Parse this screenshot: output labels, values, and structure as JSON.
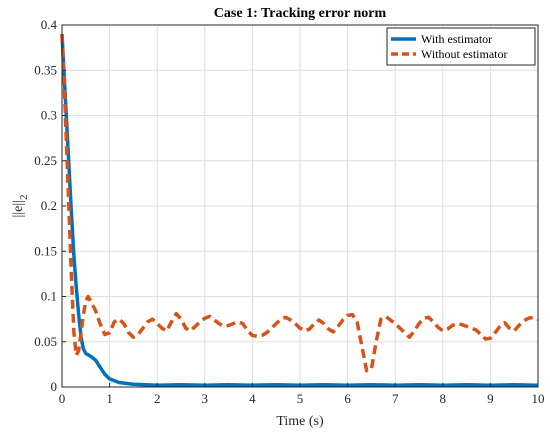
{
  "chart_data": {
    "type": "line",
    "title": "Case 1: Tracking error norm",
    "xlabel": "Time (s)",
    "ylabel": "||e||",
    "ylabel_sub": "2",
    "xlim": [
      0,
      10
    ],
    "ylim": [
      0,
      0.4
    ],
    "grid": true,
    "legend_position": "top-right",
    "x_ticks": [
      "0",
      "1",
      "2",
      "3",
      "4",
      "5",
      "6",
      "7",
      "8",
      "9",
      "10"
    ],
    "y_ticks": [
      "0",
      "0.05",
      "0.1",
      "0.15",
      "0.2",
      "0.25",
      "0.3",
      "0.35",
      "0.4"
    ],
    "series": [
      {
        "name": "With estimator",
        "color": "#0072BD",
        "style": "solid",
        "points": [
          [
            0.0,
            0.39
          ],
          [
            0.05,
            0.34
          ],
          [
            0.1,
            0.29
          ],
          [
            0.15,
            0.24
          ],
          [
            0.2,
            0.19
          ],
          [
            0.25,
            0.145
          ],
          [
            0.3,
            0.11
          ],
          [
            0.35,
            0.08
          ],
          [
            0.4,
            0.055
          ],
          [
            0.45,
            0.042
          ],
          [
            0.5,
            0.037
          ],
          [
            0.6,
            0.034
          ],
          [
            0.7,
            0.03
          ],
          [
            0.8,
            0.022
          ],
          [
            0.9,
            0.014
          ],
          [
            1.0,
            0.009
          ],
          [
            1.2,
            0.005
          ],
          [
            1.5,
            0.003
          ],
          [
            2.0,
            0.002
          ],
          [
            2.5,
            0.0025
          ],
          [
            3.0,
            0.002
          ],
          [
            3.5,
            0.0025
          ],
          [
            4.0,
            0.002
          ],
          [
            4.5,
            0.0025
          ],
          [
            5.0,
            0.002
          ],
          [
            5.5,
            0.0025
          ],
          [
            6.0,
            0.002
          ],
          [
            6.5,
            0.0025
          ],
          [
            7.0,
            0.002
          ],
          [
            7.5,
            0.0025
          ],
          [
            8.0,
            0.002
          ],
          [
            8.5,
            0.0025
          ],
          [
            9.0,
            0.002
          ],
          [
            9.5,
            0.0025
          ],
          [
            10.0,
            0.002
          ]
        ]
      },
      {
        "name": "Without estimator",
        "color": "#D95319",
        "style": "dashed",
        "points": [
          [
            0.0,
            0.39
          ],
          [
            0.05,
            0.33
          ],
          [
            0.1,
            0.26
          ],
          [
            0.15,
            0.19
          ],
          [
            0.2,
            0.12
          ],
          [
            0.25,
            0.06
          ],
          [
            0.3,
            0.035
          ],
          [
            0.35,
            0.04
          ],
          [
            0.4,
            0.06
          ],
          [
            0.45,
            0.08
          ],
          [
            0.5,
            0.095
          ],
          [
            0.55,
            0.1
          ],
          [
            0.6,
            0.095
          ],
          [
            0.7,
            0.085
          ],
          [
            0.8,
            0.07
          ],
          [
            0.9,
            0.058
          ],
          [
            1.0,
            0.06
          ],
          [
            1.1,
            0.072
          ],
          [
            1.2,
            0.075
          ],
          [
            1.3,
            0.07
          ],
          [
            1.4,
            0.06
          ],
          [
            1.5,
            0.055
          ],
          [
            1.6,
            0.058
          ],
          [
            1.7,
            0.065
          ],
          [
            1.8,
            0.072
          ],
          [
            1.9,
            0.075
          ],
          [
            2.0,
            0.07
          ],
          [
            2.1,
            0.065
          ],
          [
            2.2,
            0.062
          ],
          [
            2.3,
            0.072
          ],
          [
            2.4,
            0.081
          ],
          [
            2.5,
            0.075
          ],
          [
            2.6,
            0.065
          ],
          [
            2.7,
            0.062
          ],
          [
            2.8,
            0.067
          ],
          [
            2.9,
            0.072
          ],
          [
            3.0,
            0.076
          ],
          [
            3.1,
            0.078
          ],
          [
            3.2,
            0.074
          ],
          [
            3.3,
            0.07
          ],
          [
            3.4,
            0.067
          ],
          [
            3.5,
            0.068
          ],
          [
            3.6,
            0.07
          ],
          [
            3.7,
            0.072
          ],
          [
            3.8,
            0.07
          ],
          [
            3.9,
            0.062
          ],
          [
            4.0,
            0.057
          ],
          [
            4.1,
            0.056
          ],
          [
            4.2,
            0.057
          ],
          [
            4.3,
            0.06
          ],
          [
            4.4,
            0.065
          ],
          [
            4.5,
            0.07
          ],
          [
            4.6,
            0.075
          ],
          [
            4.7,
            0.077
          ],
          [
            4.8,
            0.074
          ],
          [
            4.9,
            0.07
          ],
          [
            5.0,
            0.065
          ],
          [
            5.1,
            0.062
          ],
          [
            5.2,
            0.064
          ],
          [
            5.3,
            0.07
          ],
          [
            5.4,
            0.074
          ],
          [
            5.5,
            0.07
          ],
          [
            5.6,
            0.064
          ],
          [
            5.7,
            0.061
          ],
          [
            5.8,
            0.067
          ],
          [
            5.9,
            0.074
          ],
          [
            6.0,
            0.079
          ],
          [
            6.1,
            0.08
          ],
          [
            6.2,
            0.072
          ],
          [
            6.3,
            0.045
          ],
          [
            6.4,
            0.018
          ],
          [
            6.5,
            0.02
          ],
          [
            6.6,
            0.05
          ],
          [
            6.7,
            0.075
          ],
          [
            6.8,
            0.078
          ],
          [
            6.9,
            0.074
          ],
          [
            7.0,
            0.07
          ],
          [
            7.1,
            0.065
          ],
          [
            7.2,
            0.06
          ],
          [
            7.3,
            0.055
          ],
          [
            7.4,
            0.062
          ],
          [
            7.5,
            0.07
          ],
          [
            7.6,
            0.076
          ],
          [
            7.7,
            0.077
          ],
          [
            7.8,
            0.072
          ],
          [
            7.9,
            0.066
          ],
          [
            8.0,
            0.062
          ],
          [
            8.1,
            0.064
          ],
          [
            8.2,
            0.068
          ],
          [
            8.3,
            0.07
          ],
          [
            8.4,
            0.069
          ],
          [
            8.5,
            0.067
          ],
          [
            8.6,
            0.065
          ],
          [
            8.7,
            0.063
          ],
          [
            8.8,
            0.058
          ],
          [
            8.9,
            0.053
          ],
          [
            9.0,
            0.054
          ],
          [
            9.1,
            0.06
          ],
          [
            9.2,
            0.067
          ],
          [
            9.3,
            0.071
          ],
          [
            9.4,
            0.065
          ],
          [
            9.5,
            0.062
          ],
          [
            9.6,
            0.068
          ],
          [
            9.7,
            0.073
          ],
          [
            9.8,
            0.076
          ],
          [
            9.9,
            0.077
          ],
          [
            10.0,
            0.075
          ]
        ]
      }
    ]
  }
}
